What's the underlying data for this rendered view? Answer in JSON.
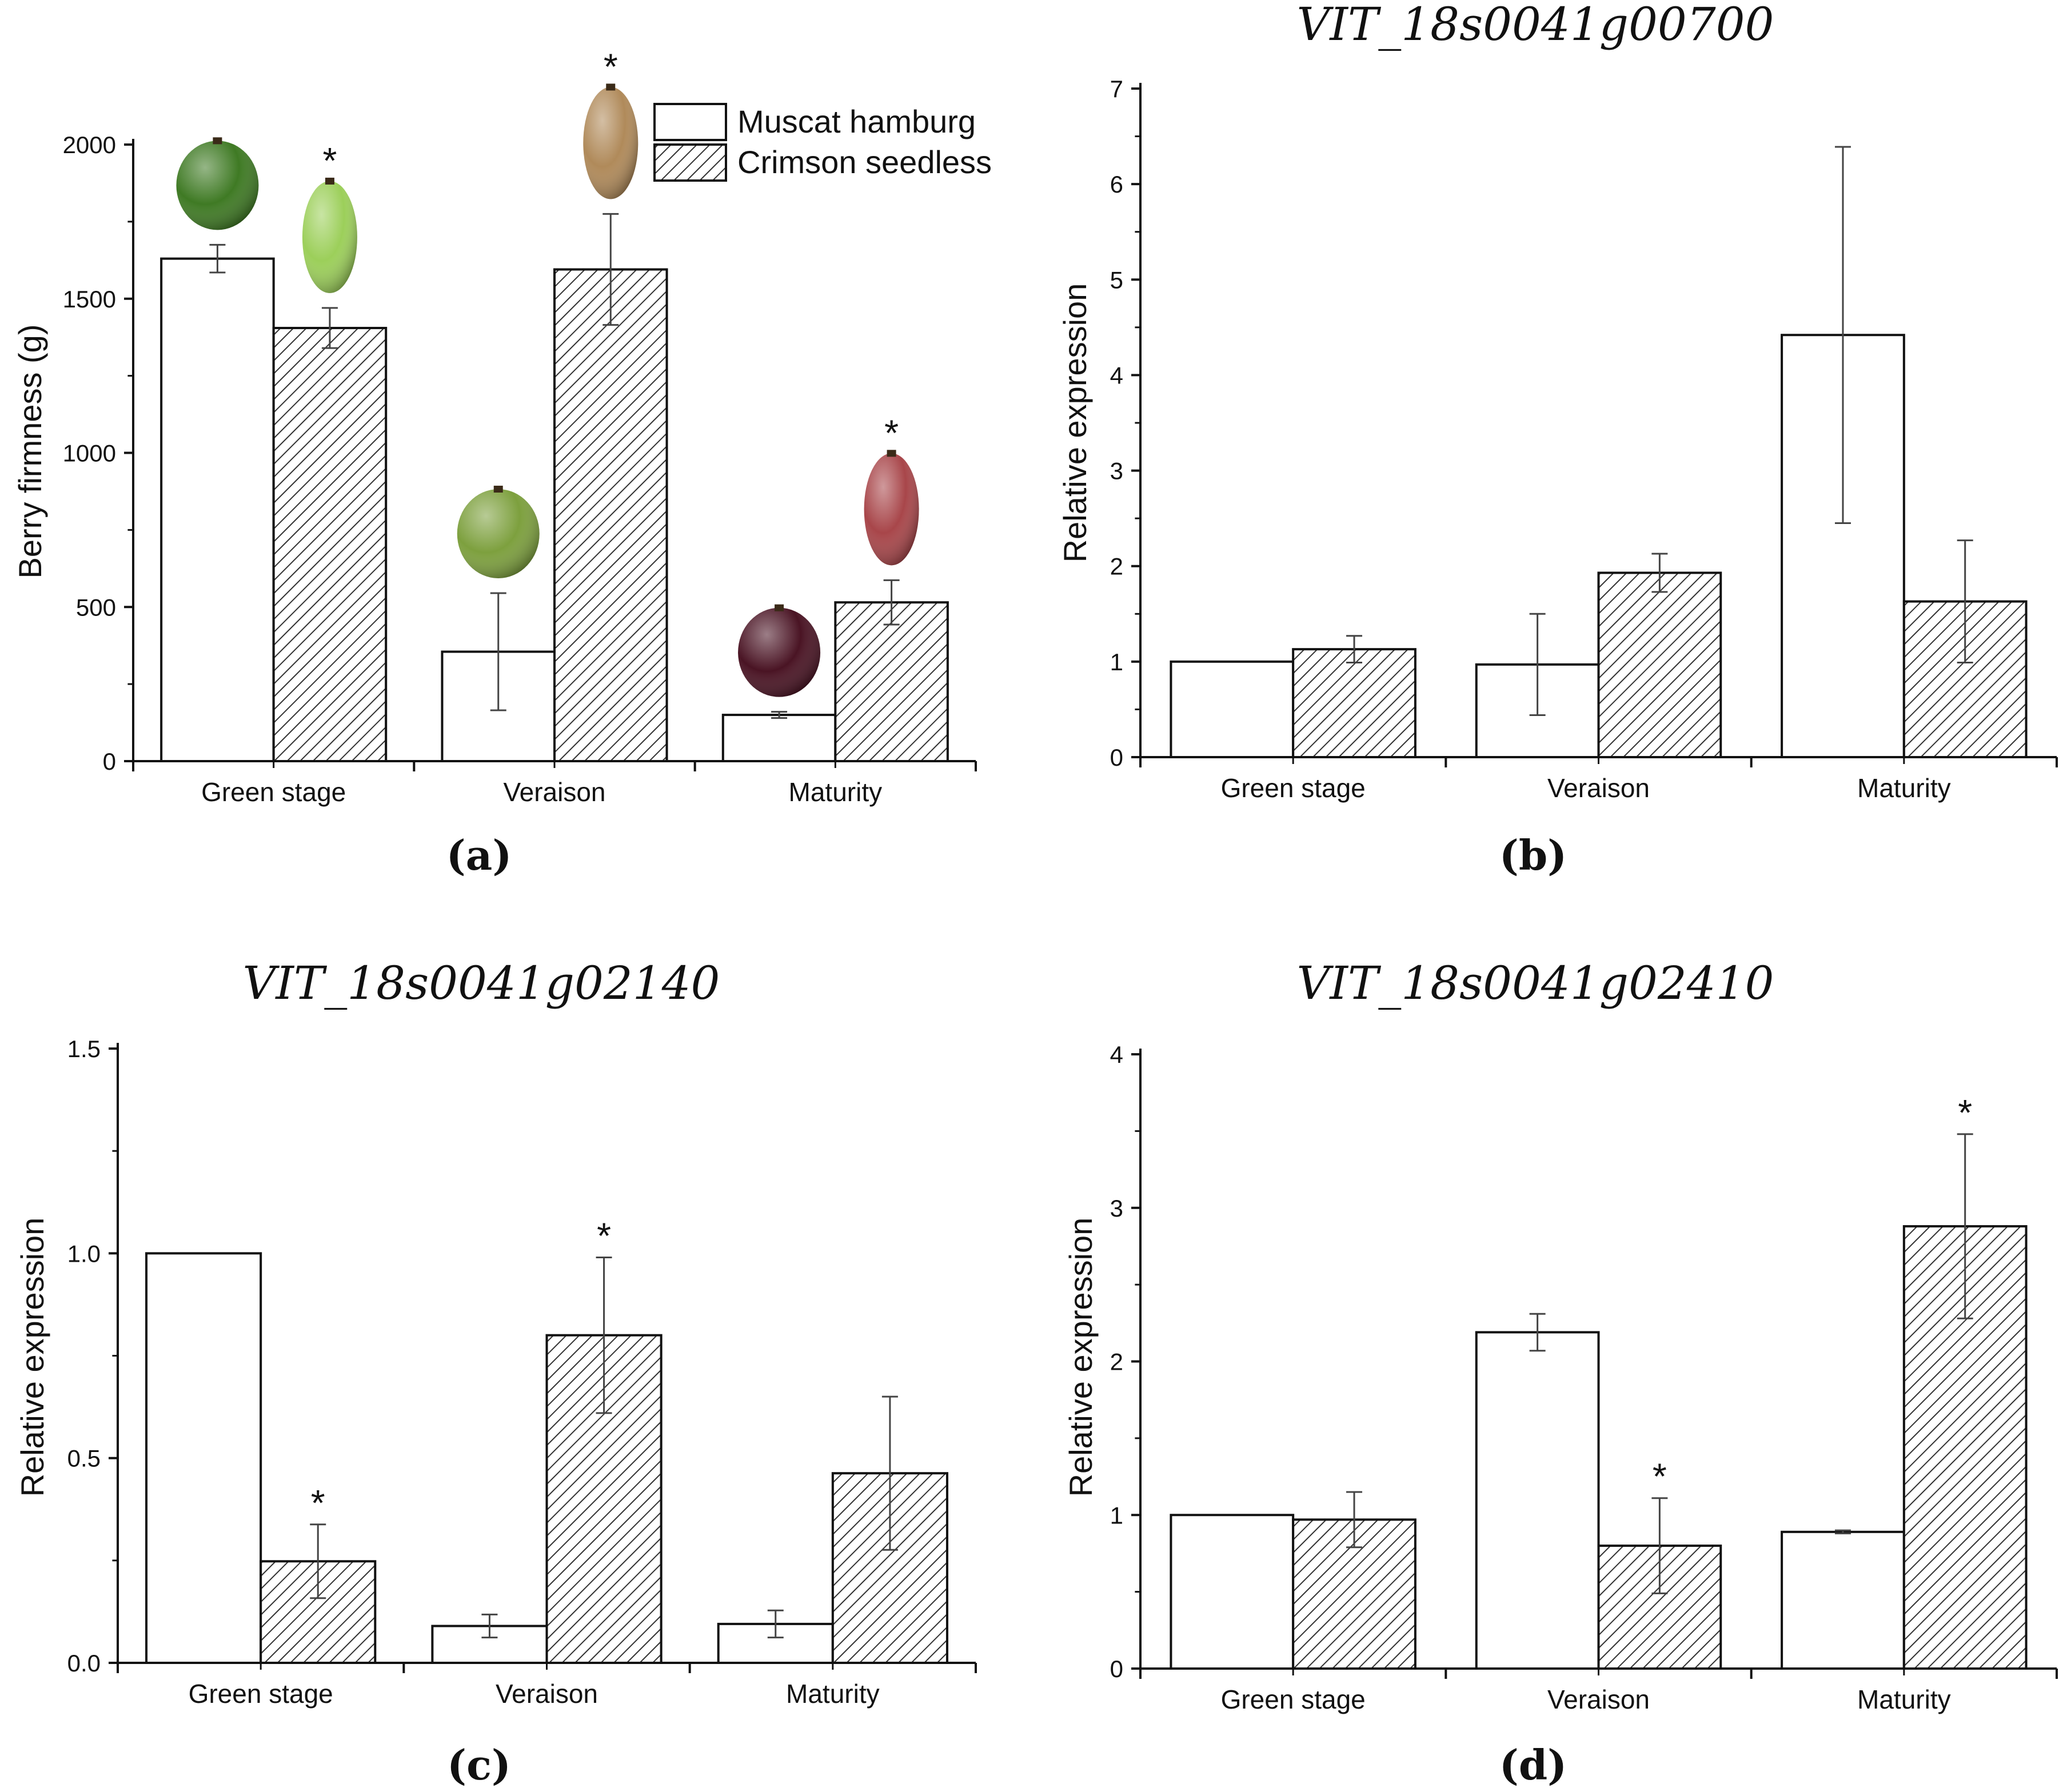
{
  "legend": {
    "entries": [
      "Muscat hamburg",
      "Crimson seedless"
    ]
  },
  "colors": {
    "muscat_fill": "#ffffff",
    "crimson_hatch": "#333333",
    "axis": "#111111"
  },
  "chart_data": [
    {
      "panel": "(a)",
      "type": "bar",
      "title": "",
      "caption": "(a)",
      "xlabel": "",
      "ylabel": "Berry firmness (g)",
      "categories": [
        "Green stage",
        "Veraison",
        "Maturity"
      ],
      "ylim": [
        0,
        2000
      ],
      "yticks": [
        0,
        500,
        1000,
        1500,
        2000
      ],
      "ytick_labels": [
        "0",
        "500",
        "1000",
        "1500",
        "2000"
      ],
      "legend": "top-right",
      "series": [
        {
          "name": "Muscat hamburg",
          "values": [
            1630,
            355,
            150
          ],
          "errors": [
            45,
            190,
            10
          ],
          "significant": [
            false,
            false,
            false
          ]
        },
        {
          "name": "Crimson seedless",
          "values": [
            1405,
            1595,
            515
          ],
          "errors": [
            65,
            180,
            72
          ],
          "significant": [
            true,
            true,
            true
          ]
        }
      ],
      "annotations": [
        "*"
      ],
      "berry_photos": [
        {
          "category": "Green stage",
          "series": "Muscat hamburg",
          "color": "#3f7a24"
        },
        {
          "category": "Green stage",
          "series": "Crimson seedless",
          "color": "#9ccf5a"
        },
        {
          "category": "Veraison",
          "series": "Muscat hamburg",
          "color": "#7da03e"
        },
        {
          "category": "Veraison",
          "series": "Crimson seedless",
          "color": "#b08a5a"
        },
        {
          "category": "Maturity",
          "series": "Muscat hamburg",
          "color": "#4a1424"
        },
        {
          "category": "Maturity",
          "series": "Crimson seedless",
          "color": "#a8464a"
        }
      ]
    },
    {
      "panel": "(b)",
      "type": "bar",
      "title": "VIT_18s0041g00700",
      "caption": "(b)",
      "xlabel": "",
      "ylabel": "Relative expression",
      "categories": [
        "Green stage",
        "Veraison",
        "Maturity"
      ],
      "ylim": [
        0,
        7
      ],
      "yticks": [
        0,
        1,
        2,
        3,
        4,
        5,
        6,
        7
      ],
      "ytick_labels": [
        "0",
        "1",
        "2",
        "3",
        "4",
        "5",
        "6",
        "7"
      ],
      "series": [
        {
          "name": "Muscat hamburg",
          "values": [
            1.0,
            0.97,
            4.42
          ],
          "errors": [
            0,
            0.53,
            1.97
          ],
          "significant": [
            false,
            false,
            false
          ]
        },
        {
          "name": "Crimson seedless",
          "values": [
            1.13,
            1.93,
            1.63
          ],
          "errors": [
            0.14,
            0.2,
            0.64
          ],
          "significant": [
            false,
            false,
            false
          ]
        }
      ]
    },
    {
      "panel": "(c)",
      "type": "bar",
      "title": "VIT_18s0041g02140",
      "caption": "(c)",
      "xlabel": "",
      "ylabel": "Relative expression",
      "categories": [
        "Green stage",
        "Veraison",
        "Maturity"
      ],
      "ylim": [
        0,
        1.5
      ],
      "yticks": [
        0,
        0.5,
        1.0,
        1.5
      ],
      "ytick_labels": [
        "0.0",
        "0.5",
        "1.0",
        "1.5"
      ],
      "series": [
        {
          "name": "Muscat hamburg",
          "values": [
            1.0,
            0.09,
            0.095
          ],
          "errors": [
            0,
            0.028,
            0.033
          ],
          "significant": [
            false,
            false,
            false
          ]
        },
        {
          "name": "Crimson seedless",
          "values": [
            0.248,
            0.8,
            0.463
          ],
          "errors": [
            0.09,
            0.19,
            0.187
          ],
          "significant": [
            true,
            true,
            false
          ]
        }
      ]
    },
    {
      "panel": "(d)",
      "type": "bar",
      "title": "VIT_18s0041g02410",
      "caption": "(d)",
      "xlabel": "",
      "ylabel": "Relative expression",
      "categories": [
        "Green stage",
        "Veraison",
        "Maturity"
      ],
      "ylim": [
        0,
        4
      ],
      "yticks": [
        0,
        1,
        2,
        3,
        4
      ],
      "ytick_labels": [
        "0",
        "1",
        "2",
        "3",
        "4"
      ],
      "series": [
        {
          "name": "Muscat hamburg",
          "values": [
            1.0,
            2.19,
            0.89
          ],
          "errors": [
            0,
            0.12,
            0.01
          ],
          "significant": [
            false,
            false,
            false
          ]
        },
        {
          "name": "Crimson seedless",
          "values": [
            0.97,
            0.8,
            2.88
          ],
          "errors": [
            0.18,
            0.31,
            0.6
          ],
          "significant": [
            false,
            true,
            true
          ]
        }
      ]
    }
  ]
}
